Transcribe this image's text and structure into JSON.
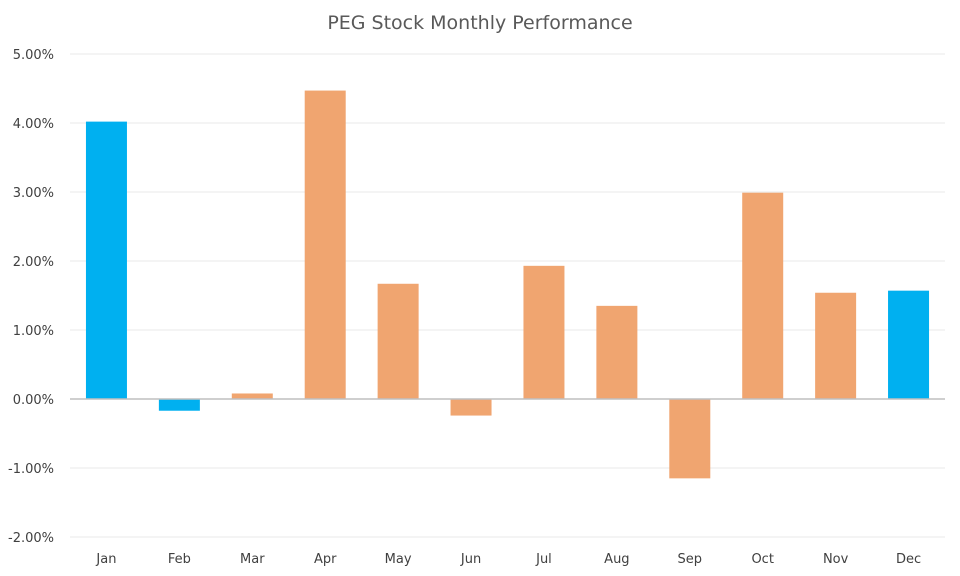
{
  "chart_data": {
    "type": "bar",
    "title": "PEG Stock Monthly Performance",
    "xlabel": "",
    "ylabel": "",
    "categories": [
      "Jan",
      "Feb",
      "Mar",
      "Apr",
      "May",
      "Jun",
      "Jul",
      "Aug",
      "Sep",
      "Oct",
      "Nov",
      "Dec"
    ],
    "values": [
      4.02,
      -0.17,
      0.08,
      4.47,
      1.67,
      -0.24,
      1.93,
      1.35,
      -1.15,
      2.99,
      1.54,
      1.57
    ],
    "colors": [
      "#00B0F0",
      "#00B0F0",
      "#F0A570",
      "#F0A570",
      "#F0A570",
      "#F0A570",
      "#F0A570",
      "#F0A570",
      "#F0A570",
      "#F0A570",
      "#F0A570",
      "#00B0F0"
    ],
    "ylim": [
      -2,
      5
    ],
    "yticks": [
      -2,
      -1,
      0,
      1,
      2,
      3,
      4,
      5
    ],
    "ytick_labels": [
      "-2.00%",
      "-1.00%",
      "0.00%",
      "1.00%",
      "2.00%",
      "3.00%",
      "4.00%",
      "5.00%"
    ],
    "grid": true,
    "legend": "none"
  }
}
